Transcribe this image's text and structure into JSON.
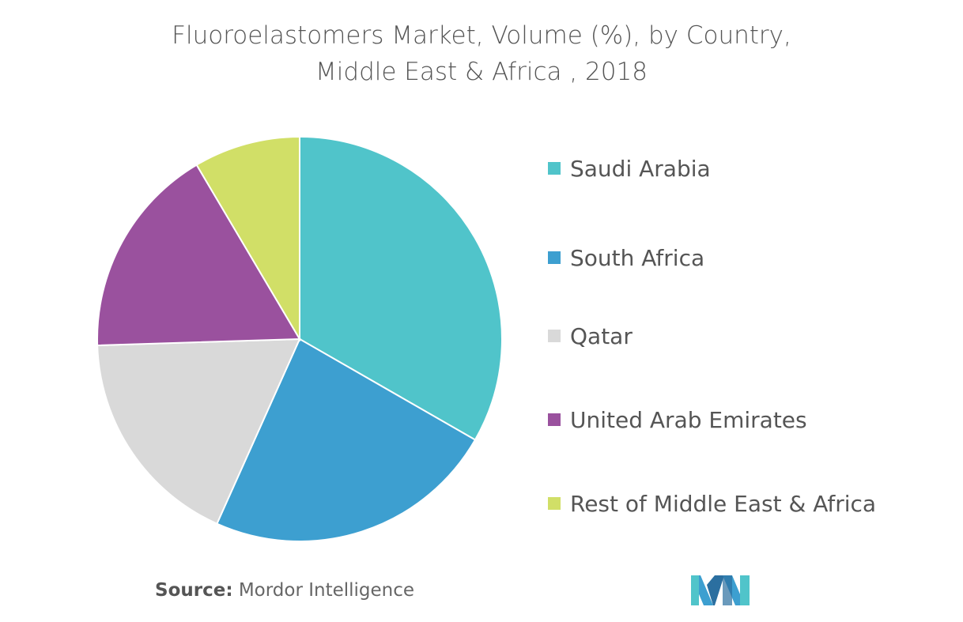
{
  "chart_data": {
    "type": "pie",
    "title": "Fluoroelastomers Market, Volume (%), by Country,\nMiddle East & Africa , 2018",
    "title_lines": [
      "Fluoroelastomers Market, Volume (%), by Country,",
      "Middle East & Africa , 2018"
    ],
    "categories": [
      "Saudi Arabia",
      "South Africa",
      "Qatar",
      "United Arab Emirates",
      "Rest of Middle East & Africa"
    ],
    "values": [
      33.3,
      23.4,
      17.8,
      17.0,
      8.5
    ],
    "colors": [
      "#50C4CA",
      "#3D9FD0",
      "#D9D9D9",
      "#9A519E",
      "#D1DF67"
    ],
    "start_angle": "12 o'clock, clockwise",
    "legend_position": "right"
  },
  "source": {
    "label": "Source:",
    "text": "Mordor Intelligence"
  },
  "logo": {
    "text": "Mordor Intelligence logo"
  }
}
